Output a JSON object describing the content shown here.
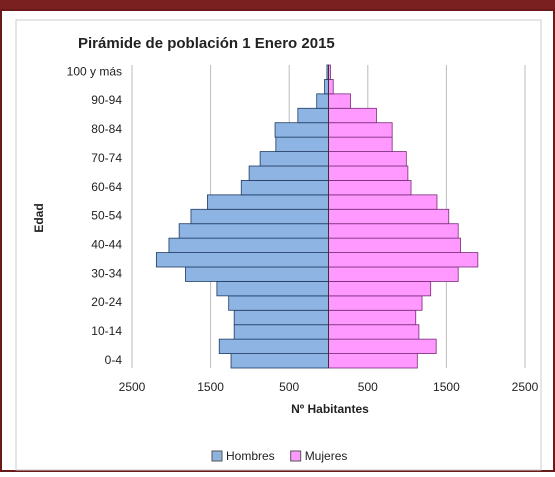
{
  "chart_data": {
    "type": "pyramid",
    "title": "Pirámide de población  1 Enero 2015",
    "y_label": "Edad",
    "x_label": "Nº Habitantes",
    "categories": [
      "0-4",
      null,
      "10-14",
      null,
      "20-24",
      null,
      "30-34",
      null,
      "40-44",
      null,
      "50-54",
      null,
      "60-64",
      null,
      "70-74",
      null,
      "80-84",
      null,
      "90-94",
      null,
      "100 y más"
    ],
    "series": [
      {
        "name": "Hombres",
        "color": "#8db4e2",
        "side": "left",
        "values": [
          1240,
          1390,
          1200,
          1200,
          1270,
          1420,
          1820,
          2190,
          2030,
          1900,
          1750,
          1540,
          1110,
          1010,
          870,
          670,
          680,
          390,
          150,
          50,
          20
        ]
      },
      {
        "name": "Mujeres",
        "color": "#ff99ff",
        "side": "right",
        "values": [
          1130,
          1370,
          1150,
          1110,
          1190,
          1300,
          1650,
          1900,
          1680,
          1650,
          1530,
          1380,
          1050,
          1010,
          990,
          810,
          810,
          610,
          280,
          60,
          25
        ]
      }
    ],
    "xlim": [
      -2500,
      2500
    ],
    "xticks": [
      {
        "value": -2500,
        "label": "2500"
      },
      {
        "value": -1500,
        "label": "1500"
      },
      {
        "value": -500,
        "label": "500"
      },
      500,
      1500,
      2500
    ],
    "grid": true,
    "legend": "bottom"
  }
}
